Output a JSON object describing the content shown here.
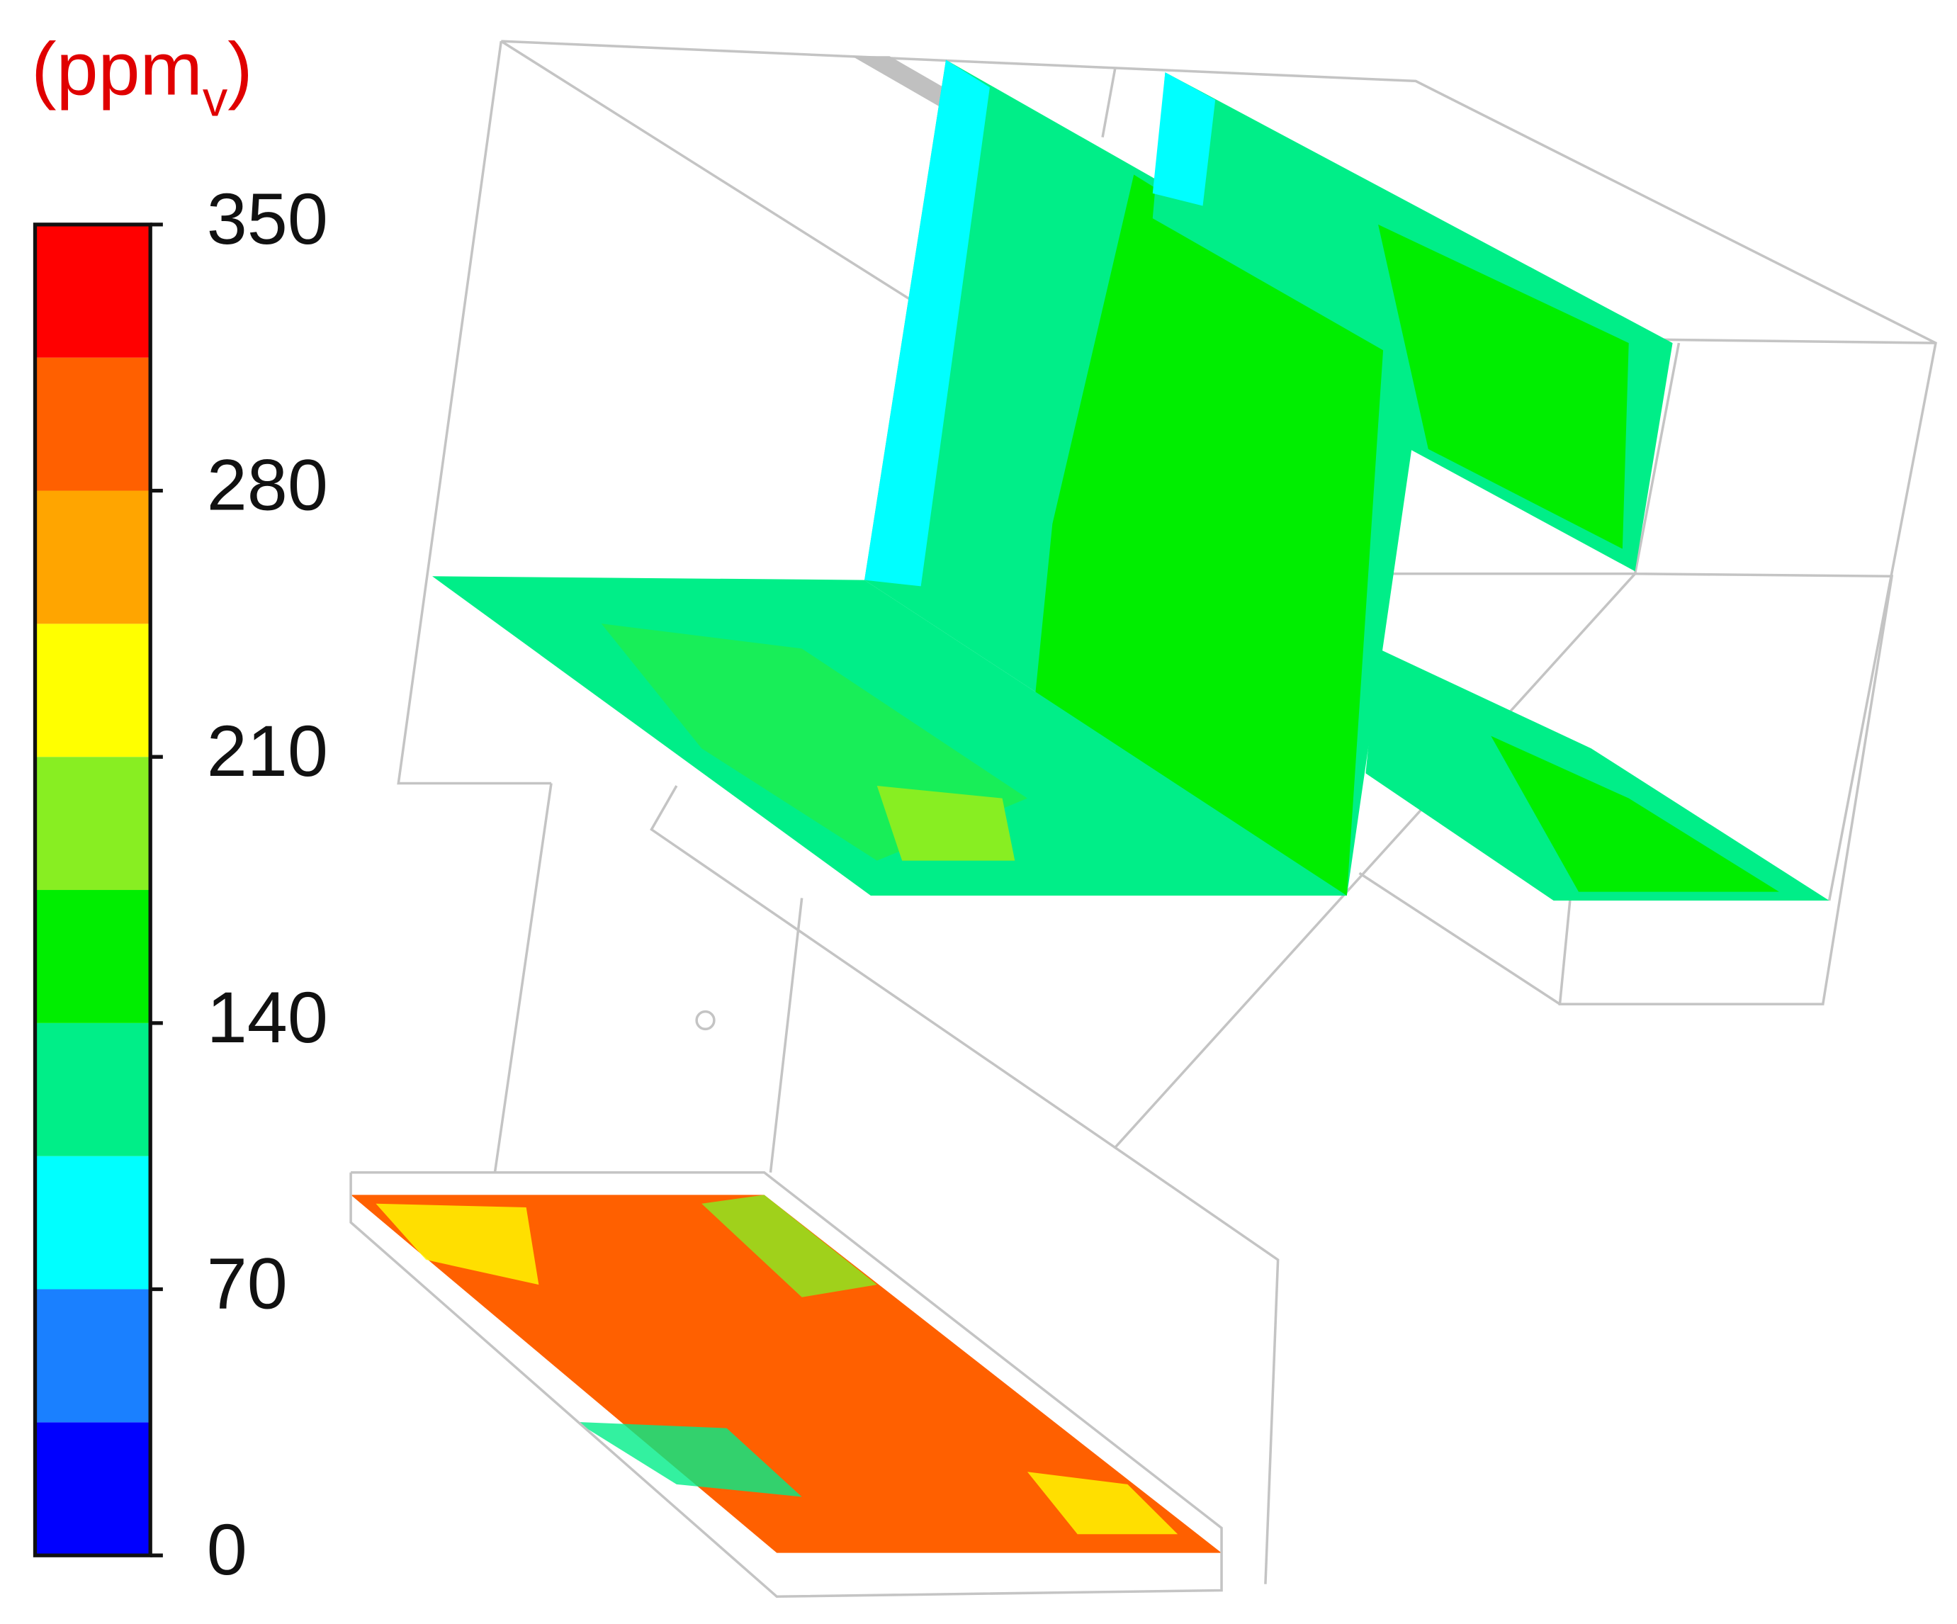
{
  "chart_data": {
    "type": "contour",
    "title_parts": [
      "(ppm",
      "v",
      ")"
    ],
    "title_color": "#e00000",
    "levels": [
      "#0000ff",
      "#1a80ff",
      "#00ffff",
      "#00ee88",
      "#00ee00",
      "#88ee22",
      "#ffff00",
      "#ffa500",
      "#ff6000",
      "#ff0000"
    ],
    "ylim": [
      0,
      350
    ],
    "yticks": [
      0,
      70,
      140,
      210,
      280,
      350
    ]
  }
}
